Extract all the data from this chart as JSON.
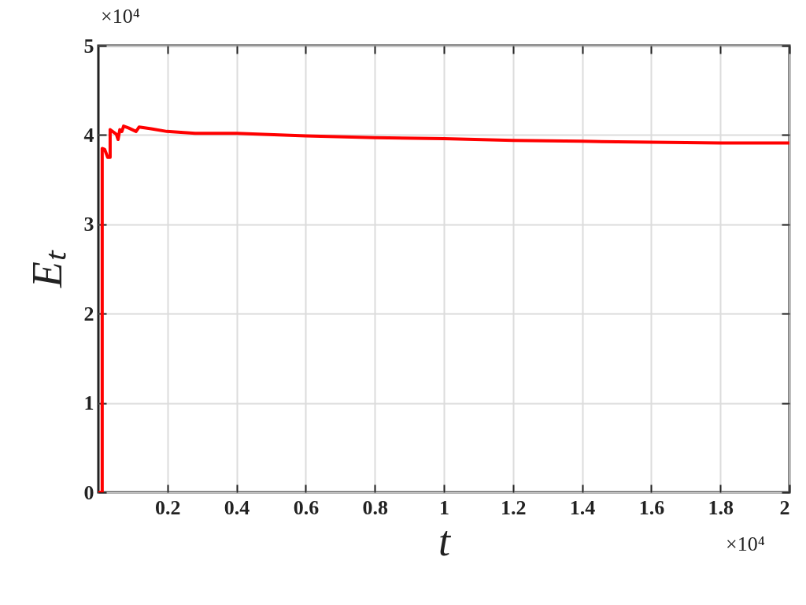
{
  "chart_data": {
    "type": "line",
    "xlabel": "t",
    "ylabel": "Eₜ",
    "annotations": [
      "×10⁴",
      "×10⁴"
    ],
    "xlim": [
      0,
      2
    ],
    "ylim": [
      0,
      5
    ],
    "xticks": [
      0.2,
      0.4,
      0.6,
      0.8,
      1,
      1.2,
      1.4,
      1.6,
      1.8,
      2
    ],
    "yticks": [
      0,
      1,
      2,
      3,
      4,
      5
    ],
    "grid": true,
    "line_style": "solid",
    "marker": "none",
    "series": [
      {
        "color": "#ff0000",
        "x": [
          0,
          0.011,
          0.011,
          0.018,
          0.027,
          0.034,
          0.034,
          0.052,
          0.057,
          0.062,
          0.068,
          0.073,
          0.087,
          0.109,
          0.118,
          0.153,
          0.198,
          0.28,
          0.4,
          0.6,
          0.8,
          1.0,
          1.2,
          1.4,
          1.6,
          1.8,
          2.0
        ],
        "values": [
          0,
          0,
          3.85,
          3.84,
          3.75,
          3.75,
          4.06,
          4.01,
          3.95,
          4.06,
          4.04,
          4.1,
          4.08,
          4.04,
          4.09,
          4.07,
          4.04,
          4.02,
          4.02,
          3.99,
          3.97,
          3.96,
          3.94,
          3.93,
          3.92,
          3.91,
          3.91
        ]
      }
    ]
  }
}
